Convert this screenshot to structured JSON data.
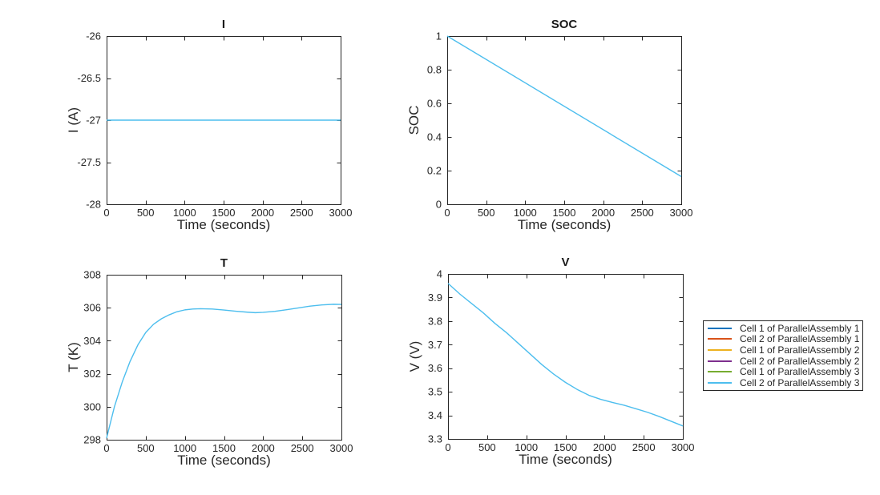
{
  "figure": {
    "background": "#ffffff",
    "axis_color": "#262626",
    "text_color": "#262626",
    "title_color": "#1a1a1a",
    "plot_line_color": "#4DBEEE"
  },
  "legend": {
    "entries": [
      {
        "label": "Cell 1 of ParallelAssembly 1",
        "color": "#0072BD"
      },
      {
        "label": "Cell 2 of ParallelAssembly 1",
        "color": "#D95319"
      },
      {
        "label": "Cell 1 of ParallelAssembly 2",
        "color": "#EDB120"
      },
      {
        "label": "Cell 2 of ParallelAssembly 2",
        "color": "#7E2F8E"
      },
      {
        "label": "Cell 1 of ParallelAssembly 3",
        "color": "#77AC30"
      },
      {
        "label": "Cell 2 of ParallelAssembly 3",
        "color": "#4DBEEE"
      }
    ]
  },
  "chart_data": [
    {
      "id": "I",
      "type": "line",
      "title": "I",
      "xlabel": "Time (seconds)",
      "ylabel": "I (A)",
      "xlim": [
        0,
        3000
      ],
      "ylim": [
        -28,
        -26
      ],
      "xticks": [
        0,
        500,
        1000,
        1500,
        2000,
        2500,
        3000
      ],
      "xtick_labels": [
        "0",
        "500",
        "1000",
        "1500",
        "2000",
        "2500",
        "3000"
      ],
      "yticks": [
        -28,
        -27.5,
        -27,
        -26.5,
        -26
      ],
      "ytick_labels": [
        "-28",
        "-27.5",
        "-27",
        "-26.5",
        "-26"
      ],
      "grid": false,
      "legend_position": "none",
      "line_color": "#4DBEEE",
      "x": [
        0,
        3000
      ],
      "y": [
        -27,
        -27
      ]
    },
    {
      "id": "SOC",
      "type": "line",
      "title": "SOC",
      "xlabel": "Time (seconds)",
      "ylabel": "SOC",
      "xlim": [
        0,
        3000
      ],
      "ylim": [
        0,
        1
      ],
      "xticks": [
        0,
        500,
        1000,
        1500,
        2000,
        2500,
        3000
      ],
      "xtick_labels": [
        "0",
        "500",
        "1000",
        "1500",
        "2000",
        "2500",
        "3000"
      ],
      "yticks": [
        0,
        0.2,
        0.4,
        0.6,
        0.8,
        1
      ],
      "ytick_labels": [
        "0",
        "0.2",
        "0.4",
        "0.6",
        "0.8",
        "1"
      ],
      "grid": false,
      "legend_position": "none",
      "line_color": "#4DBEEE",
      "x": [
        0,
        3000
      ],
      "y": [
        1.0,
        0.165
      ]
    },
    {
      "id": "T",
      "type": "line",
      "title": "T",
      "xlabel": "Time (seconds)",
      "ylabel": "T (K)",
      "xlim": [
        0,
        3000
      ],
      "ylim": [
        298,
        308
      ],
      "xticks": [
        0,
        500,
        1000,
        1500,
        2000,
        2500,
        3000
      ],
      "xtick_labels": [
        "0",
        "500",
        "1000",
        "1500",
        "2000",
        "2500",
        "3000"
      ],
      "yticks": [
        298,
        300,
        302,
        304,
        306,
        308
      ],
      "ytick_labels": [
        "298",
        "300",
        "302",
        "304",
        "306",
        "308"
      ],
      "grid": false,
      "legend_position": "none",
      "line_color": "#4DBEEE",
      "x": [
        0,
        100,
        200,
        300,
        400,
        500,
        600,
        700,
        800,
        900,
        1000,
        1100,
        1200,
        1350,
        1500,
        1650,
        1800,
        1900,
        2000,
        2150,
        2300,
        2450,
        2600,
        2750,
        2900,
        3000
      ],
      "y": [
        298.1,
        300.0,
        301.5,
        302.75,
        303.75,
        304.5,
        305.0,
        305.33,
        305.57,
        305.76,
        305.87,
        305.92,
        305.94,
        305.92,
        305.86,
        305.79,
        305.73,
        305.7,
        305.72,
        305.78,
        305.88,
        305.99,
        306.1,
        306.17,
        306.21,
        306.2
      ]
    },
    {
      "id": "V",
      "type": "line",
      "title": "V",
      "xlabel": "Time (seconds)",
      "ylabel": "V (V)",
      "xlim": [
        0,
        3000
      ],
      "ylim": [
        3.3,
        4
      ],
      "xticks": [
        0,
        500,
        1000,
        1500,
        2000,
        2500,
        3000
      ],
      "xtick_labels": [
        "0",
        "500",
        "1000",
        "1500",
        "2000",
        "2500",
        "3000"
      ],
      "yticks": [
        3.3,
        3.4,
        3.5,
        3.6,
        3.7,
        3.8,
        3.9,
        4
      ],
      "ytick_labels": [
        "3.3",
        "3.4",
        "3.5",
        "3.6",
        "3.7",
        "3.8",
        "3.9",
        "4"
      ],
      "grid": false,
      "legend_position": "right-outside",
      "line_color": "#4DBEEE",
      "x": [
        0,
        150,
        300,
        450,
        600,
        750,
        900,
        1050,
        1200,
        1350,
        1500,
        1650,
        1800,
        1950,
        2100,
        2250,
        2400,
        2550,
        2700,
        2850,
        3000
      ],
      "y": [
        3.96,
        3.915,
        3.875,
        3.835,
        3.79,
        3.75,
        3.705,
        3.66,
        3.615,
        3.575,
        3.54,
        3.51,
        3.485,
        3.468,
        3.455,
        3.443,
        3.428,
        3.413,
        3.395,
        3.375,
        3.355
      ]
    }
  ]
}
